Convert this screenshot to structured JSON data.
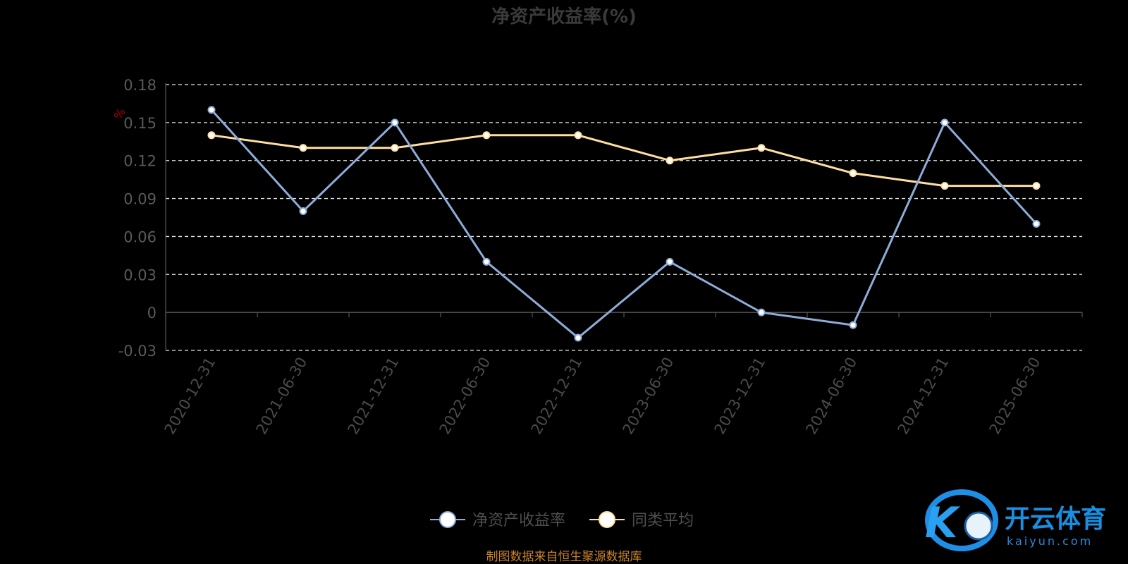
{
  "chart_data": {
    "type": "line",
    "title": "净资产收益率(%)",
    "unit_label": "%",
    "categories": [
      "2020-12-31",
      "2021-06-30",
      "2021-12-31",
      "2022-06-30",
      "2022-12-31",
      "2023-06-30",
      "2023-12-31",
      "2024-06-30",
      "2024-12-31",
      "2025-06-30"
    ],
    "series": [
      {
        "name": "净资产收益率",
        "color": "#8eacd8",
        "values": [
          0.16,
          0.08,
          0.15,
          0.04,
          -0.02,
          0.04,
          0.0,
          -0.01,
          0.15,
          0.07
        ]
      },
      {
        "name": "同类平均",
        "color": "#ffdfa0",
        "values": [
          0.14,
          0.13,
          0.13,
          0.14,
          0.14,
          0.12,
          0.13,
          0.11,
          0.1,
          0.1
        ]
      }
    ],
    "yticks": [
      "0.18",
      "0.15",
      "0.12",
      "0.09",
      "0.06",
      "0.03",
      "0",
      "-0.03"
    ],
    "ylim": [
      -0.03,
      0.18
    ],
    "grid": "dashed-horizontal",
    "legend_position": "bottom-center"
  },
  "footer": {
    "source": "制图数据来自恒生聚源数据库"
  },
  "watermark": {
    "brand": "开云体育",
    "domain": "kaiyun.com"
  }
}
